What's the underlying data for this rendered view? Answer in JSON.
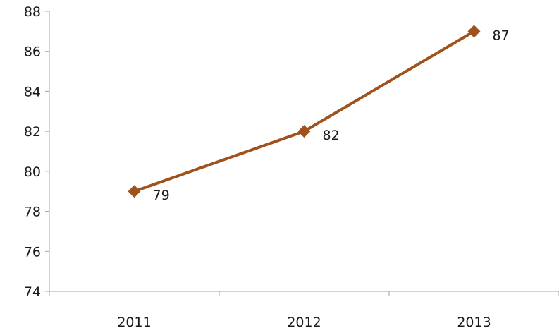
{
  "chart_data": {
    "type": "line",
    "categories": [
      "2011",
      "2012",
      "2013"
    ],
    "series": [
      {
        "values": [
          79,
          82,
          87
        ],
        "color": "#a0521c",
        "marker": "diamond"
      }
    ],
    "data_labels": [
      "79",
      "82",
      "87"
    ],
    "ylim": [
      74,
      88
    ],
    "yticks": [
      74,
      76,
      78,
      80,
      82,
      84,
      86,
      88
    ],
    "ytick_labels": [
      "74",
      "76",
      "78",
      "80",
      "82",
      "84",
      "86",
      "88"
    ],
    "grid": false,
    "legend": "none",
    "axis_color": "#a6a6a6"
  }
}
